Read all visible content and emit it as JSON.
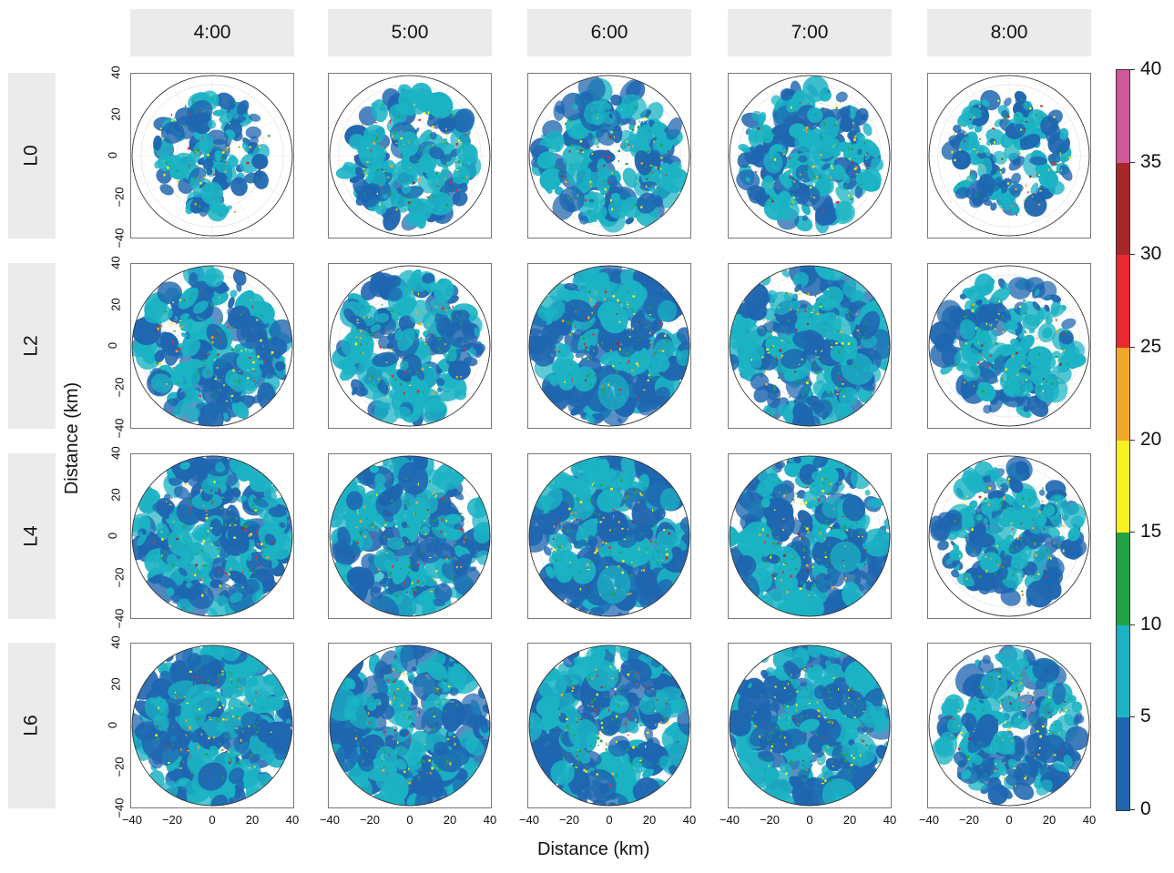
{
  "chart_data": {
    "type": "heatmap",
    "title": "",
    "description_grid": "small multiples of polar radar reflectivity maps",
    "columns": [
      "4:00",
      "5:00",
      "6:00",
      "7:00",
      "8:00"
    ],
    "rows": [
      "L0",
      "L2",
      "L4",
      "L6"
    ],
    "xlabel": "Distance (km)",
    "ylabel": "Distance (km)",
    "xlim": [
      -40,
      40
    ],
    "ylim": [
      -40,
      40
    ],
    "x_ticks": [
      "−40",
      "−20",
      "0",
      "20",
      "40"
    ],
    "y_ticks": [
      "40",
      "20",
      "0",
      "−20",
      "−40"
    ],
    "y_ticks_bottom_panel": [
      "40",
      "20",
      "0",
      "−20",
      "−40"
    ],
    "x_tick_first_bottom_left": "−40",
    "colorbar": {
      "min": 0,
      "max": 40,
      "ticks": [
        "40",
        "35",
        "30",
        "25",
        "20",
        "15",
        "10",
        "5",
        "0"
      ],
      "bins": [
        {
          "from": 0,
          "to": 5,
          "color": "#1f66b0"
        },
        {
          "from": 5,
          "to": 10,
          "color": "#1bb3c4"
        },
        {
          "from": 10,
          "to": 15,
          "color": "#22a343"
        },
        {
          "from": 15,
          "to": 20,
          "color": "#f6f120"
        },
        {
          "from": 20,
          "to": 25,
          "color": "#f2a72a"
        },
        {
          "from": 25,
          "to": 30,
          "color": "#e8292f"
        },
        {
          "from": 30,
          "to": 35,
          "color": "#a8282a"
        },
        {
          "from": 35,
          "to": 40,
          "color": "#d2589c"
        }
      ]
    },
    "coverage": [
      [
        0.35,
        0.55,
        0.65,
        0.6,
        0.4
      ],
      [
        0.75,
        0.7,
        0.85,
        0.9,
        0.6
      ],
      [
        0.85,
        0.9,
        0.95,
        0.95,
        0.65
      ],
      [
        0.95,
        0.97,
        1.0,
        0.98,
        0.7
      ]
    ]
  }
}
